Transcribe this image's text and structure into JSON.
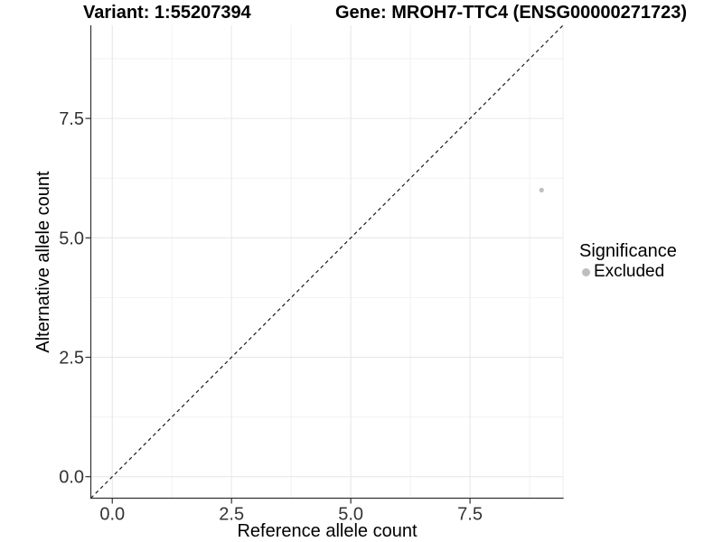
{
  "chart_data": {
    "type": "scatter",
    "titles": {
      "left": "Variant: 1:55207394",
      "right": "Gene: MROH7-TTC4 (ENSG00000271723)"
    },
    "xlabel": "Reference allele count",
    "ylabel": "Alternative allele count",
    "xlim": [
      -0.45,
      9.45
    ],
    "ylim": [
      -0.45,
      9.45
    ],
    "x_ticks": {
      "values": [
        0,
        2.5,
        5,
        7.5
      ],
      "labels": [
        "0.0",
        "2.5",
        "5.0",
        "7.5"
      ]
    },
    "y_ticks": {
      "values": [
        0,
        2.5,
        5,
        7.5
      ],
      "labels": [
        "0.0",
        "2.5",
        "5.0",
        "7.5"
      ]
    },
    "x_minor": [
      1.25,
      3.75,
      6.25,
      8.75
    ],
    "y_minor": [
      1.25,
      3.75,
      6.25,
      8.75
    ],
    "grid": true,
    "reference_line": {
      "type": "identity",
      "slope": 1,
      "intercept": 0,
      "style": "dashed"
    },
    "series": [
      {
        "name": "Excluded",
        "color": "#bebebe",
        "points": [
          {
            "x": 9,
            "y": 6
          }
        ]
      }
    ],
    "legend": {
      "title": "Significance",
      "position": "right",
      "items": [
        {
          "label": "Excluded",
          "color": "#bebebe"
        }
      ]
    },
    "colors": {
      "point": "#bebebe",
      "grid_major": "#e6e6e6",
      "grid_minor": "#f2f2f2",
      "panel_edge": "#ececec",
      "axis": "#333333",
      "tick_text": "#333333",
      "reference_line": "#1a1a1a"
    }
  }
}
